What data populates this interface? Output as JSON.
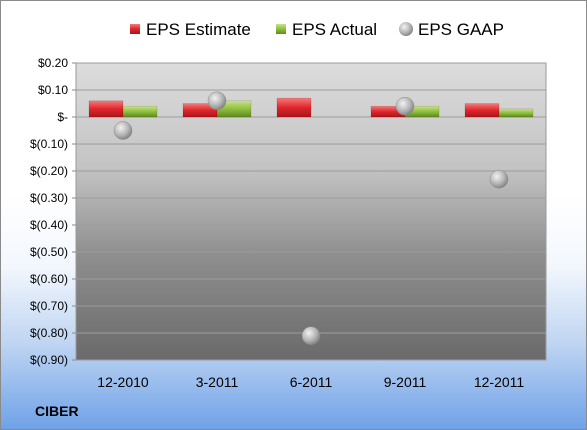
{
  "company": "CIBER",
  "colors": {
    "estimate": "#e0262b",
    "actual": "#8fbf3f",
    "gaap": "#b8b8b8"
  },
  "chart_data": {
    "type": "bar",
    "categories": [
      "12-2010",
      "3-2011",
      "6-2011",
      "9-2011",
      "12-2011"
    ],
    "series": [
      {
        "name": "EPS Estimate",
        "kind": "bar",
        "values": [
          0.06,
          0.05,
          0.07,
          0.04,
          0.05
        ]
      },
      {
        "name": "EPS Actual",
        "kind": "bar",
        "values": [
          0.04,
          0.06,
          null,
          0.04,
          0.03
        ]
      },
      {
        "name": "EPS GAAP",
        "kind": "scatter",
        "values": [
          -0.05,
          0.06,
          -0.81,
          0.04,
          -0.23
        ]
      }
    ],
    "ylim": [
      -0.9,
      0.2
    ],
    "yticks": [
      0.2,
      0.1,
      0,
      -0.1,
      -0.2,
      -0.3,
      -0.4,
      -0.5,
      -0.6,
      -0.7,
      -0.8,
      -0.9
    ],
    "ytick_labels": [
      "$0.20",
      "$0.10",
      "$-",
      "$(0.10)",
      "$(0.20)",
      "$(0.30)",
      "$(0.40)",
      "$(0.50)",
      "$(0.60)",
      "$(0.70)",
      "$(0.80)",
      "$(0.90)"
    ],
    "grid": true,
    "legend": "top"
  }
}
